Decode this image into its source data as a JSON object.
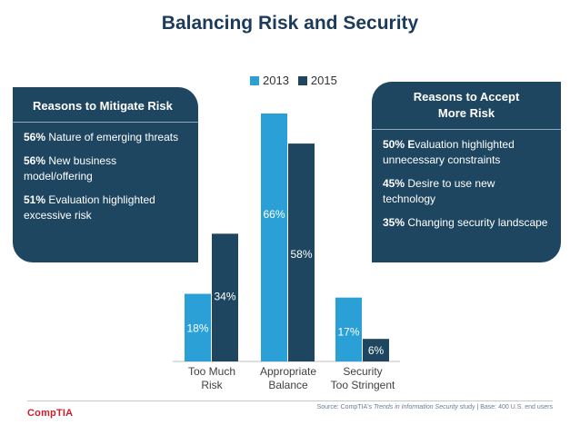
{
  "title": "Balancing Risk and Security",
  "colors": {
    "s2013": "#2aa0d6",
    "s2015": "#1e4660",
    "box": "#1e4660"
  },
  "legend": {
    "y2013": "2013",
    "y2015": "2015"
  },
  "left_box": {
    "title": "Reasons to Mitigate Risk",
    "reasons": [
      {
        "pct": "56%",
        "text": "Nature of emerging threats"
      },
      {
        "pct": "56%",
        "text": "New business model/offering"
      },
      {
        "pct": "51%",
        "text": "Evaluation highlighted excessive risk"
      }
    ]
  },
  "right_box": {
    "title": "Reasons to Accept More Risk",
    "reasons": [
      {
        "pct": "50% E",
        "text": "valuation highlighted unnecessary constraints"
      },
      {
        "pct": "45%",
        "text": "Desire to use new technology"
      },
      {
        "pct": "35%",
        "text": "Changing security landscape"
      }
    ]
  },
  "chart_data": {
    "type": "bar",
    "categories": [
      [
        "Too Much",
        "Risk"
      ],
      [
        "Appropriate",
        "Balance"
      ],
      [
        "Security",
        "Too Stringent"
      ]
    ],
    "series": [
      {
        "name": "2013",
        "values": [
          18,
          66,
          17
        ],
        "labels": [
          "18%",
          "66%",
          "17%"
        ]
      },
      {
        "name": "2015",
        "values": [
          34,
          58,
          6
        ],
        "labels": [
          "34%",
          "58%",
          "6%"
        ]
      }
    ],
    "title": "Balancing Risk and Security",
    "ylim": [
      0,
      70
    ]
  },
  "footer": {
    "logo": "CompTIA",
    "source_prefix": "Source: CompTIA's ",
    "source_title": "Trends in Information Security",
    "source_suffix": " study | Base: 400 U.S. end users"
  }
}
